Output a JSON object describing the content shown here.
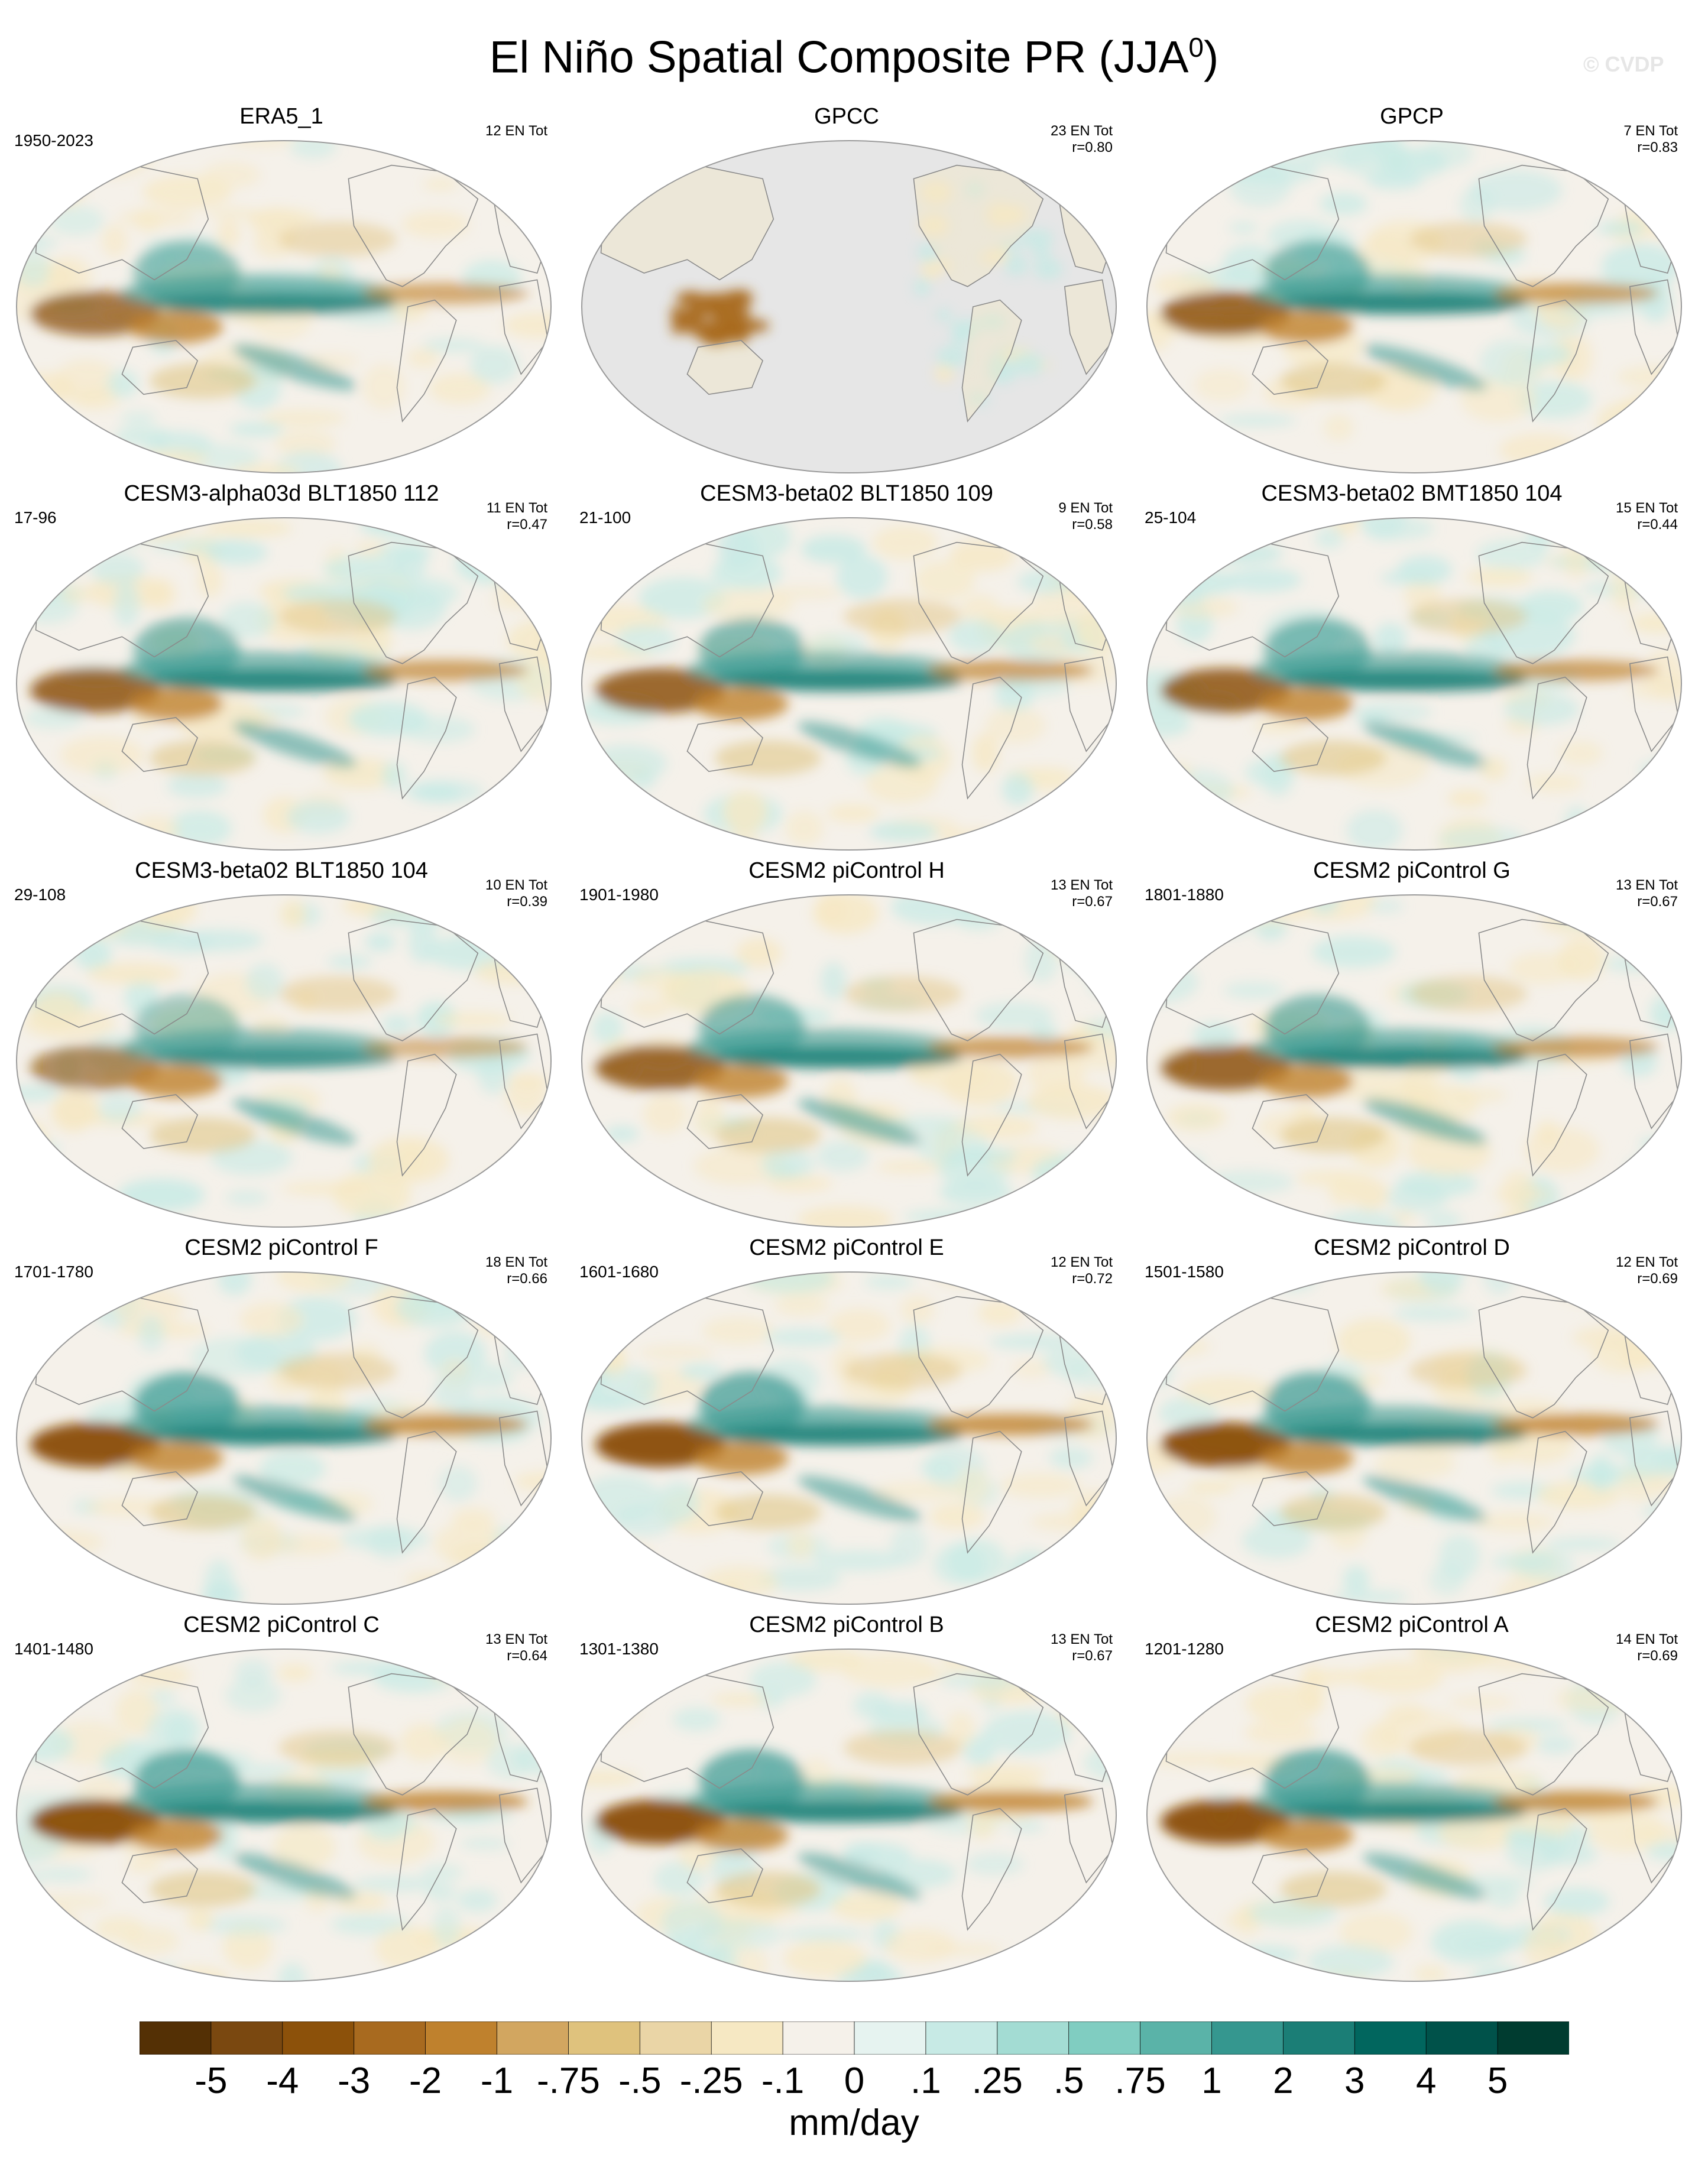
{
  "figure": {
    "title": "El Niño Spatial Composite PR (JJA",
    "title_sup": "0",
    "title_close": ")",
    "watermark": "© CVDP"
  },
  "panels": [
    {
      "title": "ERA5_1",
      "period": "1950-2023",
      "count": "12 EN Tot",
      "r": "",
      "style": "reanalysis"
    },
    {
      "title": "GPCC",
      "period": "",
      "count": "23 EN Tot",
      "r": "r=0.80",
      "style": "land_only"
    },
    {
      "title": "GPCP",
      "period": "",
      "count": "7 EN Tot",
      "r": "r=0.83",
      "style": "obs"
    },
    {
      "title": "CESM3-alpha03d BLT1850 112",
      "period": "17-96",
      "count": "11 EN Tot",
      "r": "r=0.47",
      "style": "model"
    },
    {
      "title": "CESM3-beta02 BLT1850 109",
      "period": "21-100",
      "count": "9 EN Tot",
      "r": "r=0.58",
      "style": "model"
    },
    {
      "title": "CESM3-beta02 BMT1850 104",
      "period": "25-104",
      "count": "15 EN Tot",
      "r": "r=0.44",
      "style": "model"
    },
    {
      "title": "CESM3-beta02 BLT1850 104",
      "period": "29-108",
      "count": "10 EN Tot",
      "r": "r=0.39",
      "style": "model_weak"
    },
    {
      "title": "CESM2 piControl H",
      "period": "1901-1980",
      "count": "13 EN Tot",
      "r": "r=0.67",
      "style": "model"
    },
    {
      "title": "CESM2 piControl G",
      "period": "1801-1880",
      "count": "13 EN Tot",
      "r": "r=0.67",
      "style": "model"
    },
    {
      "title": "CESM2 piControl F",
      "period": "1701-1780",
      "count": "18 EN Tot",
      "r": "r=0.66",
      "style": "model_strong"
    },
    {
      "title": "CESM2 piControl E",
      "period": "1601-1680",
      "count": "12 EN Tot",
      "r": "r=0.72",
      "style": "model_strong"
    },
    {
      "title": "CESM2 piControl D",
      "period": "1501-1580",
      "count": "12 EN Tot",
      "r": "r=0.69",
      "style": "model_strong"
    },
    {
      "title": "CESM2 piControl C",
      "period": "1401-1480",
      "count": "13 EN Tot",
      "r": "r=0.64",
      "style": "model_strong"
    },
    {
      "title": "CESM2 piControl B",
      "period": "1301-1380",
      "count": "13 EN Tot",
      "r": "r=0.67",
      "style": "model_strong"
    },
    {
      "title": "CESM2 piControl A",
      "period": "1201-1280",
      "count": "14 EN Tot",
      "r": "r=0.69",
      "style": "model_strong"
    }
  ],
  "colorbar": {
    "units": "mm/day",
    "tick_labels": [
      "-5",
      "-4",
      "-3",
      "-2",
      "-1",
      "-.75",
      "-.5",
      "-.25",
      "-.1",
      "0",
      ".1",
      ".25",
      ".5",
      ".75",
      "1",
      "2",
      "3",
      "4",
      "5"
    ],
    "colors": [
      "#543005",
      "#7a4810",
      "#8c510a",
      "#a86a1f",
      "#bf812d",
      "#d2a660",
      "#dfc27d",
      "#ead5a6",
      "#f6e8c3",
      "#f5f1ea",
      "#e6f3f0",
      "#c7eae5",
      "#a3dcd3",
      "#80cdc1",
      "#5ab3a8",
      "#35978f",
      "#1b7e76",
      "#01665e",
      "#00524a",
      "#003c30"
    ]
  }
}
